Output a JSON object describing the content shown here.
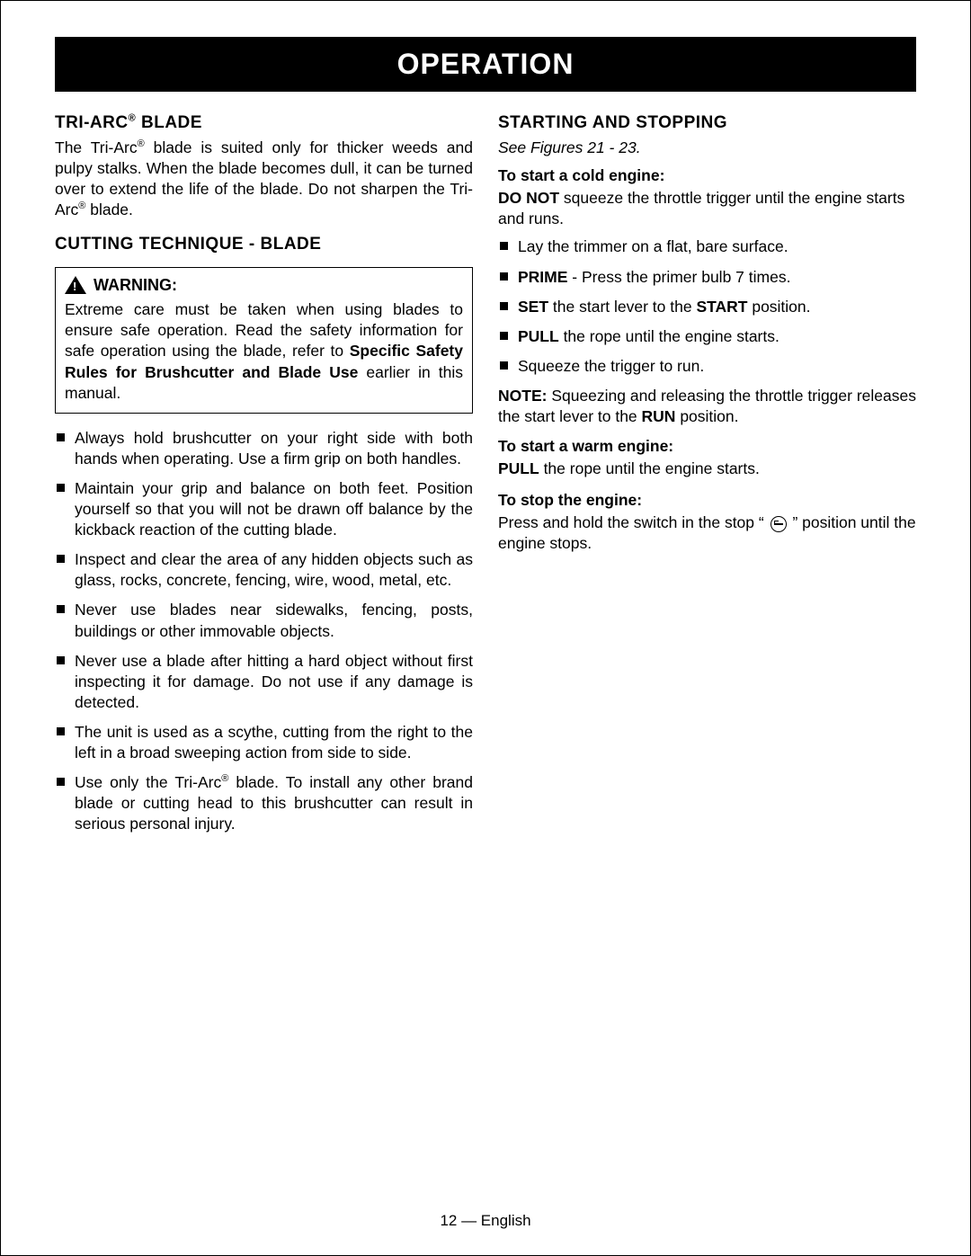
{
  "banner": "OPERATION",
  "left": {
    "h1_html": "TRI-ARC<span class='sup'>®</span> BLADE",
    "p1_html": "The Tri-Arc<span class='sup'>®</span> blade is suited only for thicker weeds and pulpy stalks. When the blade becomes dull, it can be turned over to extend the life of the blade. Do not sharpen the Tri-Arc<span class='sup'>®</span> blade.",
    "h2": "CUTTING TECHNIQUE - BLADE",
    "warn_title": "WARNING:",
    "warn_body_html": "Extreme care must be taken when using blades to ensure safe operation. Read the safety information for safe operation using the blade, refer to <span class='bold'>Specific Safety Rules for Brushcutter and Blade Use</span> earlier in this manual.",
    "bullets": [
      "Always hold brushcutter on your right side with both hands when operating. Use a firm grip on both handles.",
      "Maintain your grip and balance on both feet. Position yourself so that you will not be drawn off balance by the kickback reaction of the cutting blade.",
      "Inspect and clear the area of any hidden objects such as glass, rocks, concrete, fencing, wire, wood, metal, etc.",
      "Never use  blades near sidewalks, fencing, posts, buildings or other immovable objects.",
      "Never use a blade after hitting a hard object without first inspecting it for damage. Do not use if any damage is detected.",
      "The unit is used as a scythe, cutting from the right to the left in a broad sweeping action from side to side."
    ],
    "bullet_last_html": "Use only the Tri-Arc<span class='sup'>®</span> blade. To install any other brand blade or cutting head to this brushcutter can result in serious personal injury."
  },
  "right": {
    "h1": "STARTING AND STOPPING",
    "see": "See Figures 21 - 23.",
    "cold_head": "To start a cold engine:",
    "cold_p_html": "<span class='bold'>DO NOT</span> squeeze the throttle trigger until the engine starts and runs.",
    "cold_bullets_html": [
      "Lay the trimmer on a flat, bare surface.",
      "<span class='bold'>PRIME</span> - Press the primer bulb 7 times.",
      "<span class='bold'>SET</span> the start lever to the <span class='bold'>START</span> position.",
      "<span class='bold'>PULL</span> the rope until the engine starts.",
      "Squeeze the trigger to run."
    ],
    "note_html": "<span class='bold'>NOTE:</span> Squeezing and releasing the throttle trigger releases the start lever to the <span class='bold'>RUN</span> position.",
    "warm_head": "To start a warm engine:",
    "warm_p_html": "<span class='bold'>PULL</span> the rope until the engine starts.",
    "stop_head": "To stop the engine:",
    "stop_p_pre": "Press and hold the switch in the stop “ ",
    "stop_p_post": " ” position until the engine stops."
  },
  "footer": "12 — English"
}
